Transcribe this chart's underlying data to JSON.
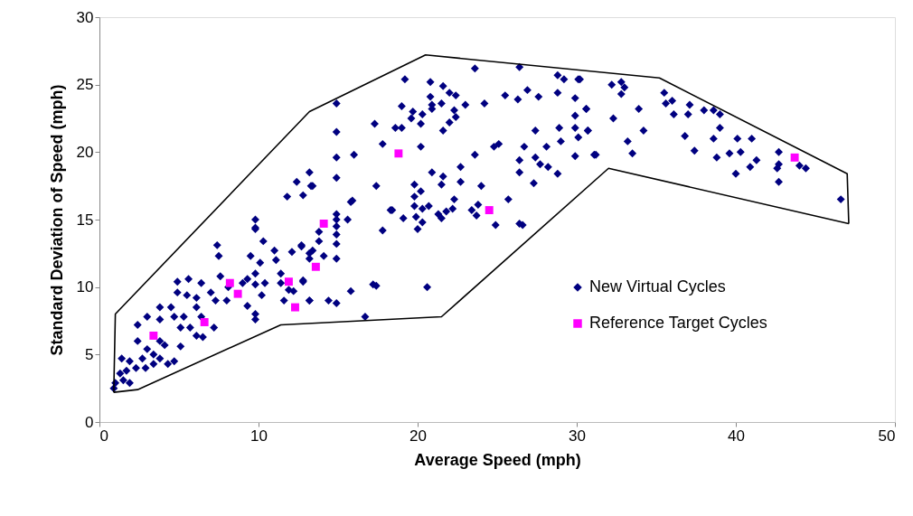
{
  "chart_data": {
    "type": "scatter",
    "xlabel": "Average Speed (mph)",
    "ylabel": "Standard Deviation of Speed (mph)",
    "xlim": [
      0,
      50
    ],
    "ylim": [
      0,
      30
    ],
    "xticks": [
      0,
      10,
      20,
      30,
      40,
      50
    ],
    "yticks": [
      0,
      5,
      10,
      15,
      20,
      25,
      30
    ],
    "grid": false,
    "legend": "right",
    "series": [
      {
        "name": "New Virtual Cycles",
        "color": "#000080",
        "marker": "diamond",
        "x": [
          30.2,
          32.2,
          32.8,
          33.0,
          32.8,
          35.5,
          35.6,
          36.0,
          30.6,
          32.3,
          33.9,
          36.1,
          37.1,
          37.0,
          38.0,
          38.6,
          39.0,
          39.0,
          30.7,
          34.2,
          33.2,
          33.5,
          31.2,
          36.8,
          37.4,
          38.6,
          40.1,
          41.0,
          38.8,
          39.6,
          40.3,
          41.3,
          40.9,
          40.0,
          42.7,
          42.7,
          42.6,
          42.7,
          44.0,
          44.4,
          46.6,
          23.6,
          26.4,
          28.8,
          29.2,
          30.1,
          19.2,
          20.8,
          21.6,
          22.0,
          22.4,
          20.8,
          21.5,
          20.9,
          20.9,
          19.0,
          23.0,
          24.2,
          25.5,
          26.3,
          26.9,
          27.6,
          28.8,
          29.9,
          30.6,
          29.9,
          19.7,
          20.3,
          19.6,
          22.3,
          22.4,
          22.0,
          17.3,
          18.6,
          19.0,
          20.2,
          21.6,
          17.8,
          20.2,
          16.0,
          14.9,
          14.9,
          14.9,
          13.2,
          13.4,
          12.8,
          14.9,
          23.6,
          24.8,
          25.1,
          26.7,
          27.4,
          28.1,
          28.9,
          29.0,
          29.9,
          30.1,
          30.7,
          29.9,
          31.1,
          26.4,
          26.4,
          27.4,
          27.7,
          28.2,
          28.8,
          27.3,
          25.7,
          22.7,
          22.7,
          24.0,
          20.9,
          21.6,
          21.5,
          19.8,
          17.4,
          20.2,
          19.8,
          22.3,
          15.9,
          18.4,
          19.1,
          19.8,
          20.3,
          20.7,
          21.3,
          21.5,
          21.8,
          22.2,
          23.4,
          23.8,
          23.7,
          24.9,
          26.4,
          26.6,
          19.9,
          20.0,
          20.3,
          15.6,
          14.9,
          14.9,
          14.9,
          17.8,
          13.8,
          20.6,
          17.2,
          17.4,
          15.8,
          13.2,
          14.4,
          14.9,
          16.7,
          14.9,
          14.1,
          13.4,
          13.2,
          13.8,
          12.7,
          12.8,
          14.9,
          14.9,
          12.4,
          13.3,
          11.8,
          15.8,
          18.3,
          9.8,
          9.8,
          9.8,
          10.3,
          7.4,
          7.5,
          9.5,
          10.1,
          11.0,
          11.1,
          11.4,
          12.1,
          12.7,
          13.2,
          9.8,
          9.3,
          9.8,
          10.4,
          11.4,
          11.9,
          12.2,
          12.8,
          11.6,
          13.2,
          10.2,
          9.3,
          9.8,
          9.8,
          7.6,
          4.9,
          5.6,
          6.4,
          4.9,
          5.5,
          6.1,
          7.0,
          7.3,
          8.0,
          8.1,
          9.0,
          3.8,
          3.0,
          2.4,
          4.5,
          4.7,
          5.3,
          6.1,
          6.4,
          5.7,
          5.1,
          6.1,
          6.5,
          7.2,
          3.8,
          3.8,
          4.1,
          5.1,
          4.7,
          2.4,
          3.0,
          2.7,
          3.8,
          3.4,
          1.4,
          1.9,
          1.7,
          1.3,
          1.5,
          1.0,
          0.9,
          1.9,
          2.3,
          2.9,
          4.3,
          3.4
        ],
        "values": [
          25.4,
          25.0,
          25.2,
          24.8,
          24.3,
          24.4,
          23.6,
          23.8,
          23.2,
          22.5,
          23.2,
          22.8,
          23.5,
          22.8,
          23.1,
          23.1,
          22.8,
          21.8,
          21.6,
          21.6,
          20.8,
          19.9,
          19.8,
          21.2,
          20.1,
          21.0,
          21.0,
          21.0,
          19.6,
          19.9,
          20.0,
          19.4,
          18.9,
          18.4,
          20.0,
          19.1,
          18.8,
          17.8,
          19.0,
          18.8,
          16.5,
          26.2,
          26.3,
          25.7,
          25.4,
          25.4,
          25.4,
          25.2,
          24.9,
          24.4,
          24.2,
          24.1,
          23.6,
          23.5,
          23.2,
          23.4,
          23.5,
          23.6,
          24.2,
          23.9,
          24.6,
          24.1,
          24.4,
          24.0,
          23.2,
          22.7,
          23.0,
          22.8,
          22.5,
          23.1,
          22.6,
          22.2,
          22.1,
          21.8,
          21.8,
          22.1,
          21.6,
          20.6,
          20.4,
          19.8,
          21.5,
          23.6,
          19.6,
          18.5,
          17.5,
          16.8,
          18.1,
          19.8,
          20.4,
          20.6,
          20.4,
          21.6,
          20.4,
          21.8,
          20.8,
          21.8,
          21.1,
          21.6,
          19.7,
          19.8,
          19.4,
          18.5,
          19.6,
          19.1,
          18.9,
          18.4,
          17.7,
          16.5,
          18.9,
          17.8,
          17.5,
          18.5,
          18.2,
          17.6,
          17.6,
          17.5,
          17.1,
          16.7,
          16.5,
          16.4,
          15.7,
          15.1,
          16.0,
          15.8,
          16.0,
          15.4,
          15.1,
          15.6,
          15.8,
          15.7,
          16.1,
          15.3,
          14.6,
          14.7,
          14.6,
          15.2,
          14.3,
          14.8,
          15.0,
          15.4,
          14.5,
          13.2,
          14.2,
          14.1,
          10.0,
          10.2,
          10.1,
          9.7,
          9.0,
          9.0,
          8.8,
          7.8,
          12.1,
          12.3,
          12.7,
          12.1,
          13.4,
          13.1,
          10.5,
          13.9,
          15.0,
          17.8,
          17.5,
          16.7,
          16.3,
          15.7,
          15.0,
          14.4,
          14.3,
          13.4,
          13.1,
          12.3,
          12.3,
          11.8,
          12.7,
          12.0,
          11.0,
          12.6,
          13.0,
          12.5,
          11.0,
          10.6,
          10.2,
          10.3,
          10.3,
          9.8,
          9.7,
          10.4,
          9.0,
          9.0,
          9.4,
          8.6,
          8.0,
          7.6,
          10.8,
          10.4,
          10.6,
          10.3,
          9.6,
          9.4,
          9.2,
          9.6,
          9.0,
          9.0,
          10.0,
          10.3,
          8.5,
          7.8,
          7.2,
          8.5,
          7.8,
          7.8,
          8.5,
          7.8,
          7.0,
          7.0,
          6.4,
          6.3,
          7.0,
          7.6,
          6.0,
          5.7,
          5.6,
          4.5,
          6.0,
          5.4,
          4.7,
          4.7,
          4.3,
          4.7,
          4.5,
          3.8,
          3.6,
          3.1,
          2.9,
          2.5,
          2.9,
          4.0,
          4.0,
          4.3,
          5.0
        ]
      },
      {
        "name": "Reference Target Cycles",
        "color": "#ff00ff",
        "marker": "square",
        "x": [
          3.4,
          6.6,
          8.2,
          8.7,
          11.9,
          12.3,
          14.1,
          13.6,
          18.8,
          24.5,
          43.7
        ],
        "values": [
          6.4,
          7.4,
          10.3,
          9.5,
          10.4,
          8.5,
          14.7,
          11.5,
          19.9,
          15.7,
          19.6
        ]
      },
      {
        "type": "line",
        "color": "#000000",
        "line_style": "solid",
        "marker": "none",
        "x": [
          0.9,
          1.0,
          13.2,
          20.5,
          35.2,
          47.0,
          47.1
        ],
        "values": [
          2.2,
          8.0,
          23.0,
          27.2,
          25.5,
          18.4,
          14.7
        ]
      },
      {
        "type": "line",
        "color": "#000000",
        "line_style": "solid",
        "marker": "none",
        "x": [
          0.9,
          2.4,
          11.4,
          21.5,
          32.0,
          47.1
        ],
        "values": [
          2.2,
          2.4,
          7.2,
          7.8,
          18.8,
          14.7
        ]
      }
    ]
  }
}
